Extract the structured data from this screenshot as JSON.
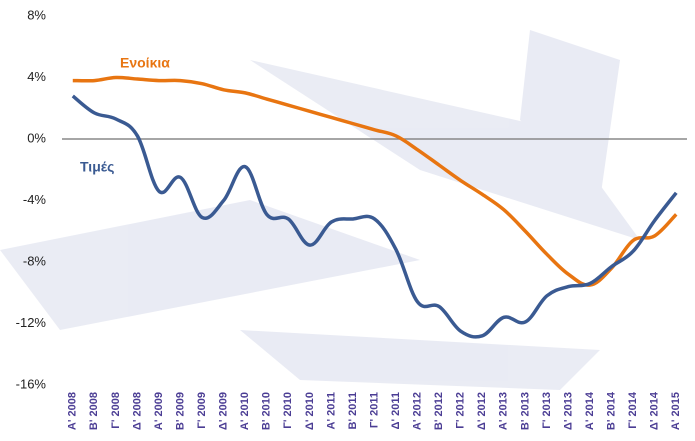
{
  "chart_data": {
    "type": "line",
    "categories": [
      "Α' 2008",
      "Β' 2008",
      "Γ' 2008",
      "Δ' 2008",
      "Α' 2009",
      "Β' 2009",
      "Γ' 2009",
      "Δ' 2009",
      "Α' 2010",
      "Β' 2010",
      "Γ' 2010",
      "Δ' 2010",
      "Α' 2011",
      "Β' 2011",
      "Γ' 2011",
      "Δ' 2011",
      "Α' 2012",
      "Β' 2012",
      "Γ' 2012",
      "Δ' 2012",
      "Α' 2013",
      "Β' 2013",
      "Γ' 2013",
      "Δ' 2013",
      "Α' 2014",
      "Β' 2014",
      "Γ' 2014",
      "Δ' 2014",
      "Α' 2015"
    ],
    "series": [
      {
        "name": "Ενοίκια",
        "color": "#e87511",
        "values": [
          3.8,
          3.8,
          4.0,
          3.9,
          3.8,
          3.8,
          3.6,
          3.2,
          3.0,
          2.6,
          2.2,
          1.8,
          1.4,
          1.0,
          0.6,
          0.2,
          -0.7,
          -1.7,
          -2.7,
          -3.6,
          -4.6,
          -6.0,
          -7.5,
          -8.8,
          -9.5,
          -8.4,
          -6.6,
          -6.3,
          -4.9
        ]
      },
      {
        "name": "Τιμές",
        "color": "#3a5a92",
        "values": [
          2.8,
          1.7,
          1.3,
          0.2,
          -3.4,
          -2.5,
          -5.1,
          -4.0,
          -1.8,
          -4.9,
          -5.2,
          -6.9,
          -5.4,
          -5.2,
          -5.2,
          -7.2,
          -10.6,
          -10.9,
          -12.5,
          -12.8,
          -11.6,
          -11.9,
          -10.2,
          -9.6,
          -9.4,
          -8.3,
          -7.3,
          -5.3,
          -3.5
        ]
      }
    ],
    "ylim": [
      -16,
      8
    ],
    "yticks": [
      {
        "value": -16,
        "label": "-16%"
      },
      {
        "value": -12,
        "label": "-12%"
      },
      {
        "value": -8,
        "label": "-8%"
      },
      {
        "value": -4,
        "label": "-4%"
      },
      {
        "value": 0,
        "label": "0%"
      },
      {
        "value": 4,
        "label": "4%"
      },
      {
        "value": 8,
        "label": "8%"
      }
    ]
  }
}
